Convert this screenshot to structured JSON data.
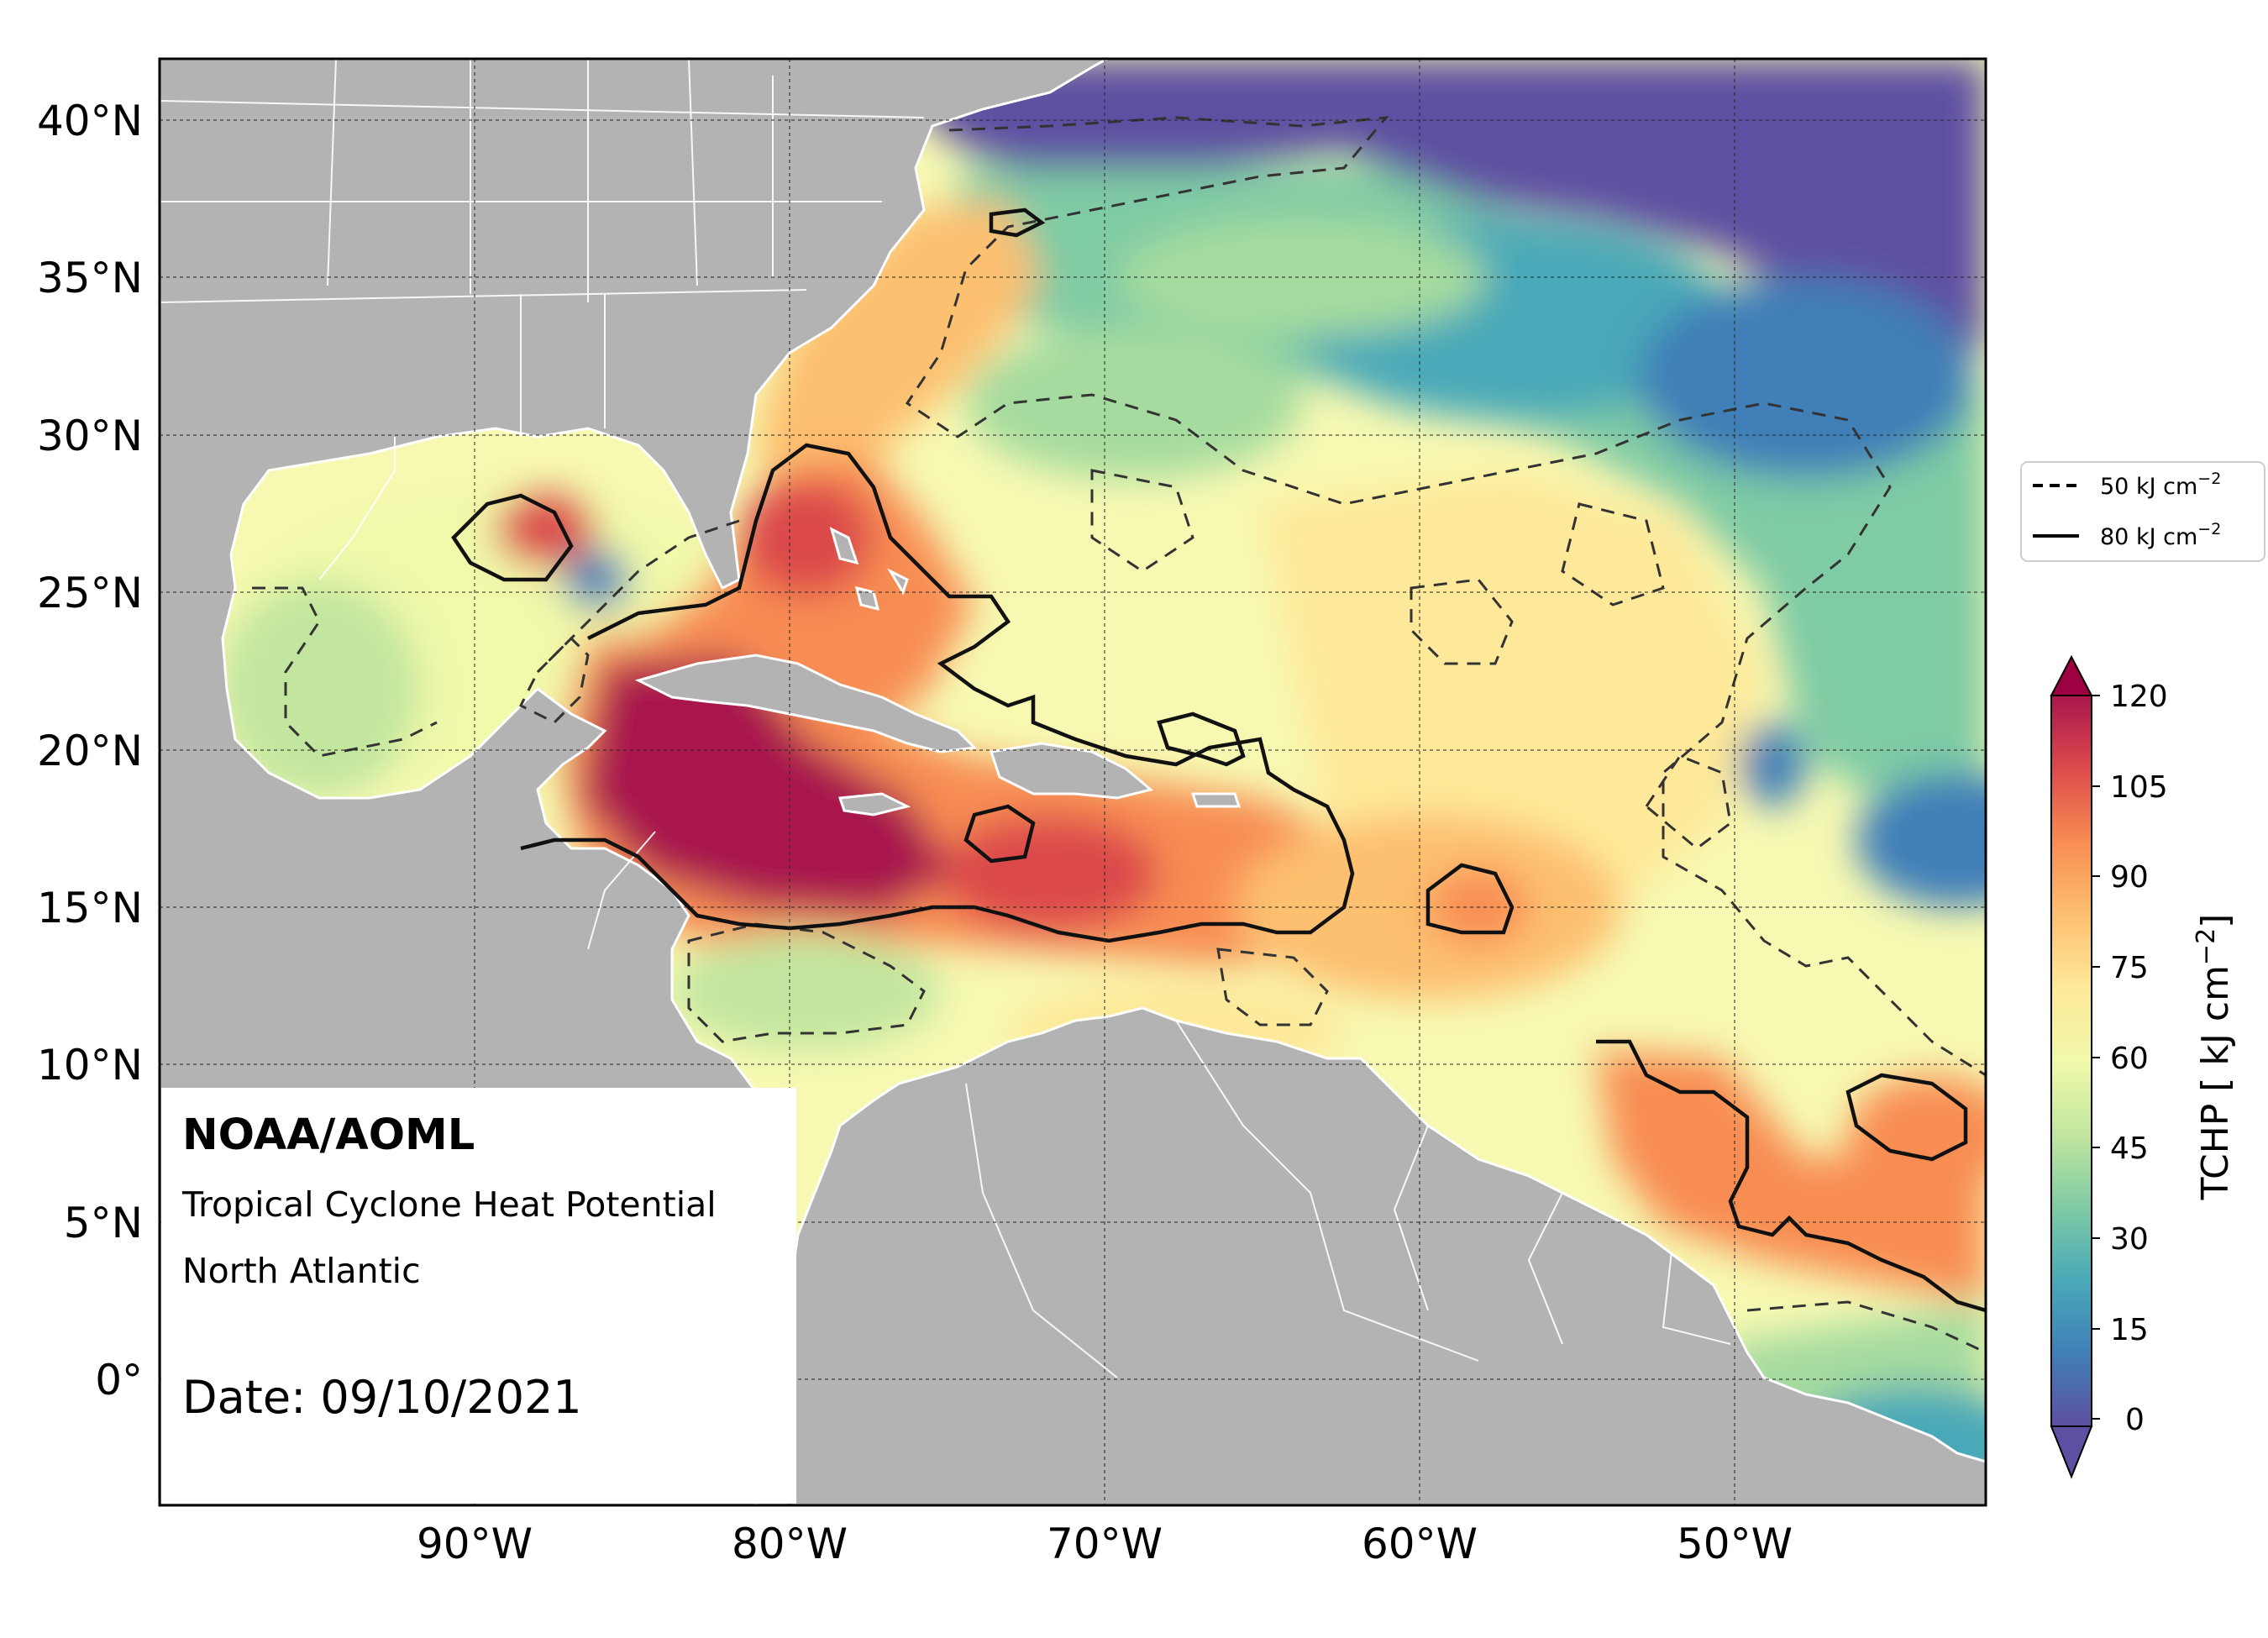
{
  "map": {
    "type": "contour-map",
    "extent": {
      "lon": [
        -100,
        -42
      ],
      "lat": [
        -4,
        42
      ]
    },
    "lat_ticks": [
      "40°N",
      "35°N",
      "30°N",
      "25°N",
      "20°N",
      "15°N",
      "10°N",
      "5°N",
      "0°"
    ],
    "lon_ticks": [
      "90°W",
      "80°W",
      "70°W",
      "60°W",
      "50°W"
    ],
    "grid": true
  },
  "annotation": {
    "org": "NOAA/AOML",
    "product": "Tropical Cyclone Heat Potential",
    "region": "North Atlantic",
    "date": "Date: 09/10/2021"
  },
  "legend": {
    "dashed_label": "50 kJ cm",
    "solid_label": "80 kJ cm",
    "exponent": "−2",
    "dashed_value": 50,
    "solid_value": 80,
    "placement": "right"
  },
  "colorbar": {
    "label": "TCHP [ kJ cm",
    "label_exp": "−2",
    "label_end": "]",
    "ticks": [
      "120",
      "105",
      "90",
      "75",
      "60",
      "45",
      "30",
      "15",
      "0"
    ],
    "min": 0,
    "max": 120,
    "colors": [
      "#5e4fa2",
      "#4d78b4",
      "#3b9cbd",
      "#6dc4a5",
      "#a6db9f",
      "#d9ef9b",
      "#f7fab0",
      "#fedf8b",
      "#fdae61",
      "#f47a49",
      "#d9444d",
      "#b01c4c",
      "#9e0142"
    ]
  }
}
